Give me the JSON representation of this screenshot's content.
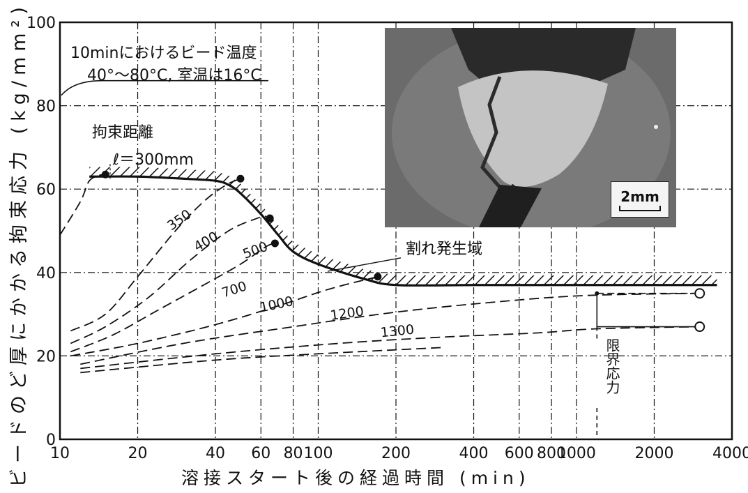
{
  "chart_data": {
    "type": "line",
    "xlabel": "溶接スタート後の経過時間 (min)",
    "ylabel": "ビードのど厚にかかる拘束応力 (kg/mm²)",
    "xscale": "log",
    "xlim": [
      10,
      4000
    ],
    "ylim": [
      0,
      100
    ],
    "xticks": [
      10,
      20,
      40,
      60,
      80,
      100,
      200,
      400,
      600,
      800,
      1000,
      2000,
      4000
    ],
    "xtick_labels": [
      "10",
      "20",
      "40",
      "60",
      "80",
      "100",
      "200",
      "400",
      "600",
      "800",
      "1000",
      "2000",
      "4000"
    ],
    "yticks": [
      0,
      20,
      40,
      60,
      80,
      100
    ],
    "ytick_labels": [
      "0",
      "20",
      "40",
      "60",
      "80",
      "100"
    ],
    "critical_curve": {
      "points": [
        [
          13,
          63
        ],
        [
          20,
          63
        ],
        [
          30,
          62.5
        ],
        [
          40,
          62
        ],
        [
          45,
          61
        ],
        [
          50,
          59
        ],
        [
          60,
          54
        ],
        [
          70,
          49
        ],
        [
          80,
          45
        ],
        [
          100,
          42
        ],
        [
          150,
          38.5
        ],
        [
          200,
          37
        ],
        [
          400,
          37
        ],
        [
          1000,
          37
        ],
        [
          2000,
          37
        ],
        [
          3000,
          37
        ],
        [
          3500,
          37
        ]
      ]
    },
    "series": [
      {
        "name": "300mm",
        "values": [
          [
            10,
            49
          ],
          [
            12,
            57
          ],
          [
            13,
            62
          ],
          [
            14.5,
            63.5
          ]
        ]
      },
      {
        "name": "350",
        "values": [
          [
            11,
            26
          ],
          [
            15,
            30
          ],
          [
            20,
            39
          ],
          [
            28,
            50
          ],
          [
            36,
            57
          ],
          [
            44,
            61
          ],
          [
            50,
            62.5
          ]
        ]
      },
      {
        "name": "400",
        "values": [
          [
            11,
            23
          ],
          [
            15,
            27
          ],
          [
            22,
            34
          ],
          [
            32,
            43
          ],
          [
            45,
            50
          ],
          [
            58,
            53
          ],
          [
            63,
            53.5
          ]
        ]
      },
      {
        "name": "500",
        "values": [
          [
            11,
            21
          ],
          [
            16,
            25
          ],
          [
            24,
            31
          ],
          [
            36,
            37
          ],
          [
            50,
            42
          ],
          [
            62,
            46
          ],
          [
            67,
            47
          ]
        ]
      },
      {
        "name": "700",
        "values": [
          [
            11,
            20
          ],
          [
            20,
            23
          ],
          [
            40,
            27.5
          ],
          [
            70,
            32
          ],
          [
            110,
            36
          ],
          [
            170,
            39
          ]
        ]
      },
      {
        "name": "1000",
        "values": [
          [
            12,
            18
          ],
          [
            30,
            23
          ],
          [
            80,
            27
          ],
          [
            200,
            30.5
          ],
          [
            500,
            33
          ],
          [
            1100,
            34.5
          ],
          [
            3000,
            35
          ]
        ]
      },
      {
        "name": "1200",
        "values": [
          [
            12,
            17
          ],
          [
            40,
            20.5
          ],
          [
            120,
            23
          ],
          [
            300,
            24.5
          ],
          [
            700,
            25.5
          ],
          [
            1200,
            26.5
          ],
          [
            3000,
            27
          ]
        ]
      },
      {
        "name": "1300",
        "values": [
          [
            12,
            16
          ],
          [
            40,
            19
          ],
          [
            100,
            20.5
          ],
          [
            300,
            22
          ]
        ]
      }
    ],
    "measured_points": [
      [
        15,
        63.5
      ],
      [
        50,
        62.5
      ],
      [
        65,
        53
      ],
      [
        68,
        47
      ],
      [
        170,
        39
      ]
    ],
    "limit_points": [
      [
        3000,
        35
      ],
      [
        3000,
        27
      ]
    ]
  },
  "annotations": {
    "bead_temp_line1": "10minにおけるビード温度",
    "bead_temp_line2": "40°～80°C, 室温は16°C",
    "restraint_title": "拘束距離",
    "restraint_value": "ℓ＝300mm",
    "crack_zone": "割れ発生域",
    "limit_stress": "限界応力",
    "photo_scale": "2mm"
  },
  "colors": {
    "ink": "#111111",
    "photo_bg": "#6a6a6a",
    "photo_dark": "#2a2a2a",
    "photo_bead": "#c4c4c4"
  }
}
